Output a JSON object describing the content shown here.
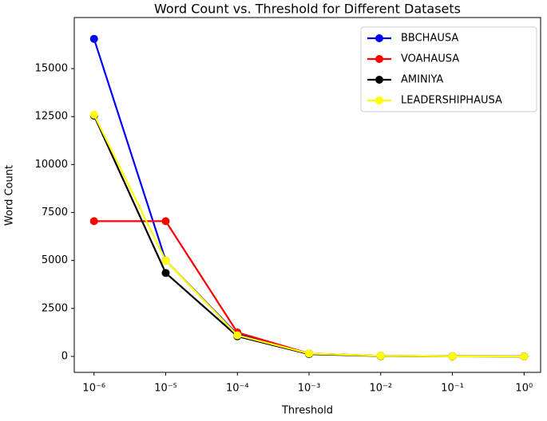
{
  "chart_data": {
    "type": "line",
    "title": "Word Count vs. Threshold for Different Datasets",
    "x_label": "Threshold",
    "y_label": "Word Count",
    "x": [
      1e-06,
      1e-05,
      0.0001,
      0.001,
      0.01,
      0.1,
      1
    ],
    "x_log": true,
    "xlim": [
      5.3e-07,
      1.7
    ],
    "xticks": [
      {
        "value": 1e-06,
        "label": "10⁻⁶"
      },
      {
        "value": 1e-05,
        "label": "10⁻⁵"
      },
      {
        "value": 0.0001,
        "label": "10⁻⁴"
      },
      {
        "value": 0.001,
        "label": "10⁻³"
      },
      {
        "value": 0.01,
        "label": "10⁻²"
      },
      {
        "value": 0.1,
        "label": "10⁻¹"
      },
      {
        "value": 1,
        "label": "10⁰"
      }
    ],
    "ylim": [
      -830,
      17660
    ],
    "yticks": [
      0,
      2500,
      5000,
      7500,
      10000,
      12500,
      15000
    ],
    "legend": "upper right",
    "series": [
      {
        "name": "BBCHAUSA",
        "color": "#0000ff",
        "values": [
          16550,
          5000,
          1150,
          150,
          30,
          5,
          0
        ]
      },
      {
        "name": "VOAHAUSA",
        "color": "#ff0000",
        "values": [
          7050,
          7050,
          1250,
          150,
          30,
          5,
          0
        ]
      },
      {
        "name": "AMINIYA",
        "color": "#000000",
        "values": [
          12550,
          4350,
          1050,
          120,
          20,
          5,
          0
        ]
      },
      {
        "name": "LEADERSHIPHAUSA",
        "color": "#ffff00",
        "values": [
          12600,
          5000,
          1100,
          150,
          30,
          5,
          0
        ]
      }
    ]
  }
}
